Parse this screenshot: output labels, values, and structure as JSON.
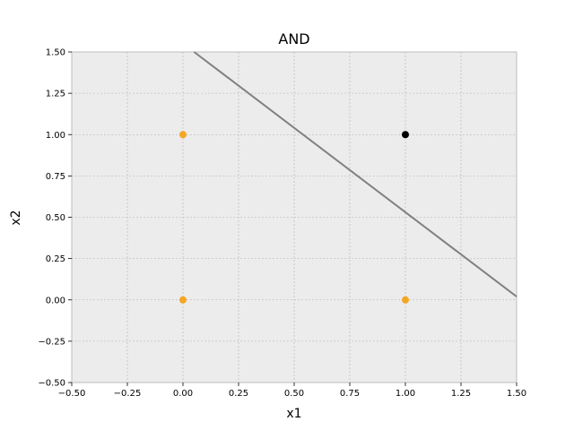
{
  "chart_data": {
    "type": "scatter",
    "title": "AND",
    "xlabel": "x1",
    "ylabel": "x2",
    "xlim": [
      -0.5,
      1.5
    ],
    "ylim": [
      -0.5,
      1.5
    ],
    "grid": true,
    "xticks": [
      -0.5,
      -0.25,
      0.0,
      0.25,
      0.5,
      0.75,
      1.0,
      1.25,
      1.5
    ],
    "yticks": [
      -0.5,
      -0.25,
      0.0,
      0.25,
      0.5,
      0.75,
      1.0,
      1.25,
      1.5
    ],
    "xtick_labels": [
      "−0.50",
      "−0.25",
      "0.00",
      "0.25",
      "0.50",
      "0.75",
      "1.00",
      "1.25",
      "1.50"
    ],
    "ytick_labels": [
      "−0.50",
      "−0.25",
      "0.00",
      "0.25",
      "0.50",
      "0.75",
      "1.00",
      "1.25",
      "1.50"
    ],
    "points": [
      {
        "x": 0,
        "y": 0,
        "class": 0,
        "color": "#f5a623"
      },
      {
        "x": 0,
        "y": 1,
        "class": 0,
        "color": "#f5a623"
      },
      {
        "x": 1,
        "y": 0,
        "class": 0,
        "color": "#f5a623"
      },
      {
        "x": 1,
        "y": 1,
        "class": 1,
        "color": "#000000"
      }
    ],
    "decision_boundary": {
      "type": "line",
      "color": "#808080",
      "points": [
        [
          0.05,
          1.5
        ],
        [
          1.5,
          0.02
        ]
      ]
    },
    "colors": {
      "plot_background": "#ececec",
      "grid": "#b0b0b0",
      "frame": "#bcbcbc"
    }
  }
}
